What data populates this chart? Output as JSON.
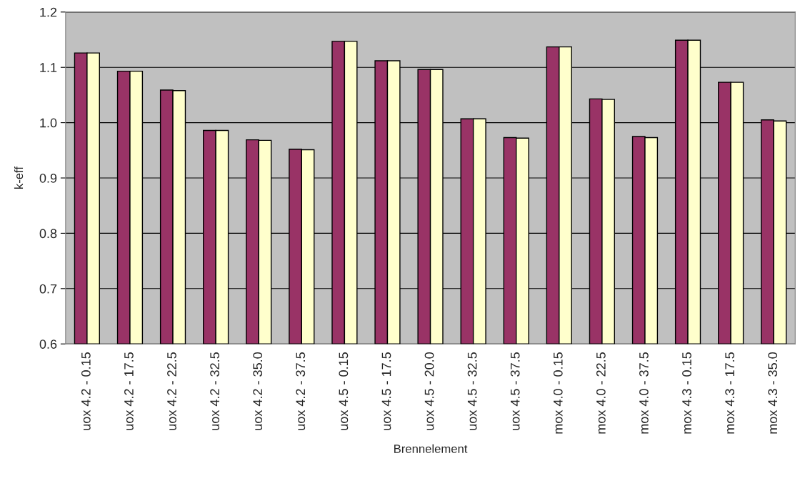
{
  "chart_data": {
    "type": "bar",
    "xlabel": "Brennelement",
    "ylabel": "k-eff",
    "categories": [
      "uox 4.2 - 0.15",
      "uox 4.2 - 17.5",
      "uox 4.2 - 22.5",
      "uox 4.2 - 32.5",
      "uox 4.2 - 35.0",
      "uox 4.2 - 37.5",
      "uox 4.5 - 0.15",
      "uox 4.5 - 17.5",
      "uox 4.5 - 20.0",
      "uox 4.5 - 32.5",
      "uox 4.5 - 37.5",
      "mox 4.0 - 0.15",
      "mox 4.0 - 22.5",
      "mox 4.0 - 37.5",
      "mox 4.3 - 0.15",
      "mox 4.3 - 17.5",
      "mox 4.3 - 35.0"
    ],
    "series": [
      {
        "color": "#993366",
        "values": [
          1.126,
          1.093,
          1.059,
          0.986,
          0.969,
          0.952,
          1.147,
          1.112,
          1.096,
          1.007,
          0.973,
          1.137,
          1.043,
          0.975,
          1.149,
          1.073,
          1.005
        ]
      },
      {
        "color": "#ffffcc",
        "values": [
          1.126,
          1.093,
          1.058,
          0.986,
          0.968,
          0.951,
          1.147,
          1.112,
          1.096,
          1.007,
          0.972,
          1.137,
          1.042,
          0.973,
          1.149,
          1.073,
          1.003
        ]
      }
    ],
    "ylim": [
      0.6,
      1.2
    ],
    "yticks": [
      {
        "value": 0.6,
        "label": "0.6"
      },
      {
        "value": 0.7,
        "label": "0.7"
      },
      {
        "value": 0.8,
        "label": "0.8"
      },
      {
        "value": 0.9,
        "label": "0.9"
      },
      {
        "value": 1.0,
        "label": "1.0"
      },
      {
        "value": 1.1,
        "label": "1.1"
      },
      {
        "value": 1.2,
        "label": "1.2"
      }
    ],
    "grid": "y"
  }
}
